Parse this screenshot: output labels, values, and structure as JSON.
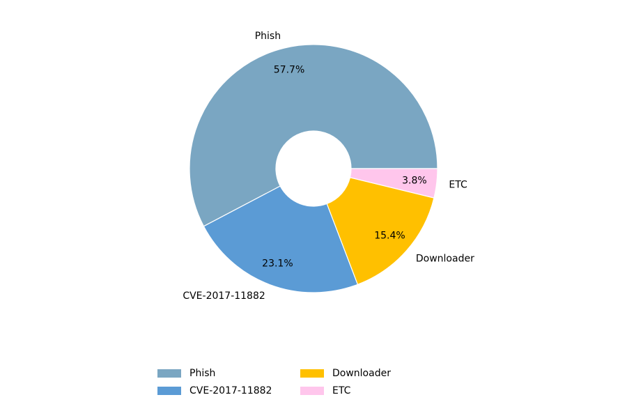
{
  "chart_data": {
    "type": "donut",
    "categories": [
      "Phish",
      "CVE-2017-11882",
      "Downloader",
      "ETC"
    ],
    "values": [
      57.7,
      23.1,
      15.4,
      3.8
    ],
    "value_labels": [
      "57.7%",
      "23.1%",
      "15.4%",
      "3.8%"
    ],
    "colors": [
      "#7aa6c2",
      "#5b9bd5",
      "#ffc000",
      "#ffc6ec"
    ],
    "legend": "bottom"
  }
}
